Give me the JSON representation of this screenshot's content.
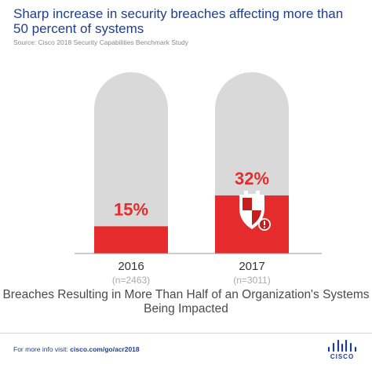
{
  "title": "Sharp increase in security breaches affecting more than 50 percent of systems",
  "source": "Source: Cisco 2018 Security Capabilities Benchmark Study",
  "chart_data": {
    "type": "bar",
    "categories": [
      "2016",
      "2017"
    ],
    "sample_sizes": [
      "(n=2463)",
      "(n=3011)"
    ],
    "values": [
      15,
      32
    ],
    "value_labels": [
      "15%",
      "32%"
    ],
    "ylim": [
      0,
      100
    ],
    "caption": "Breaches Resulting in More Than Half of an Organization's Systems Being Impacted",
    "colors": {
      "fill": "#e52b2b",
      "track": "#d9d9d9",
      "value_text": "#e52b2b",
      "baseline": "#999999"
    },
    "icons": [
      "shield-alert-icon"
    ]
  },
  "footer": {
    "prefix": "For more info visit: ",
    "link": "cisco.com/go/acr2018"
  },
  "logo": {
    "word": "CISCO",
    "color": "#1f3f8c"
  }
}
